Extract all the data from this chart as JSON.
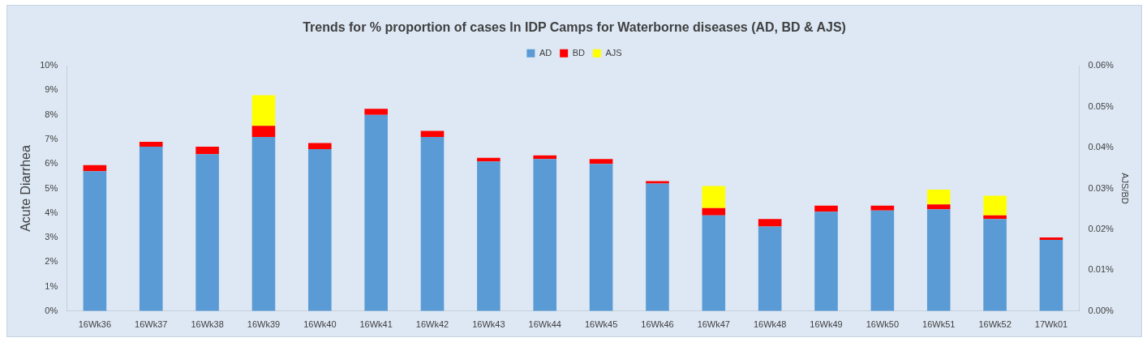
{
  "chart_data": {
    "type": "bar",
    "title": "Trends for % proportion of cases In IDP Camps for Waterborne diseases (AD, BD & AJS)",
    "ylabel": "Acute Diarrhea",
    "y2label": "AJS/BD",
    "categories": [
      "16Wk36",
      "16Wk37",
      "16Wk38",
      "16Wk39",
      "16Wk40",
      "16Wk41",
      "16Wk42",
      "16Wk43",
      "16Wk44",
      "16Wk45",
      "16Wk46",
      "16Wk47",
      "16Wk48",
      "16Wk49",
      "16Wk50",
      "16Wk51",
      "16Wk52",
      "17Wk01"
    ],
    "stacked": true,
    "series": [
      {
        "name": "AD",
        "color": "#5b9bd5",
        "values": [
          5.7,
          6.7,
          6.4,
          7.1,
          6.6,
          8.0,
          7.1,
          6.1,
          6.2,
          6.0,
          5.2,
          3.9,
          3.45,
          4.05,
          4.1,
          4.15,
          3.75,
          2.9
        ]
      },
      {
        "name": "BD",
        "color": "#ff0000",
        "values": [
          0.25,
          0.2,
          0.3,
          0.45,
          0.25,
          0.25,
          0.25,
          0.15,
          0.15,
          0.2,
          0.1,
          0.3,
          0.3,
          0.25,
          0.2,
          0.2,
          0.15,
          0.1
        ]
      },
      {
        "name": "AJS",
        "color": "#ffff00",
        "values": [
          null,
          null,
          null,
          1.25,
          null,
          null,
          null,
          null,
          null,
          null,
          null,
          0.9,
          null,
          null,
          null,
          0.6,
          0.8,
          null
        ]
      }
    ],
    "ylim": [
      0,
      10
    ],
    "yticks": [
      {
        "value": 0,
        "label": "0%"
      },
      {
        "value": 1,
        "label": "1%"
      },
      {
        "value": 2,
        "label": "2%"
      },
      {
        "value": 3,
        "label": "3%"
      },
      {
        "value": 4,
        "label": "4%"
      },
      {
        "value": 5,
        "label": "5%"
      },
      {
        "value": 6,
        "label": "6%"
      },
      {
        "value": 7,
        "label": "7%"
      },
      {
        "value": 8,
        "label": "8%"
      },
      {
        "value": 9,
        "label": "9%"
      },
      {
        "value": 10,
        "label": "10%"
      }
    ],
    "y2lim": [
      0,
      0.06
    ],
    "y2ticks": [
      {
        "value": 0,
        "label": "0.00%"
      },
      {
        "value": 0.01,
        "label": "0.01%"
      },
      {
        "value": 0.02,
        "label": "0.02%"
      },
      {
        "value": 0.03,
        "label": "0.03%"
      },
      {
        "value": 0.04,
        "label": "0.04%"
      },
      {
        "value": 0.05,
        "label": "0.05%"
      },
      {
        "value": 0.06,
        "label": "0.06%"
      }
    ],
    "grid": false,
    "legend": "top"
  }
}
